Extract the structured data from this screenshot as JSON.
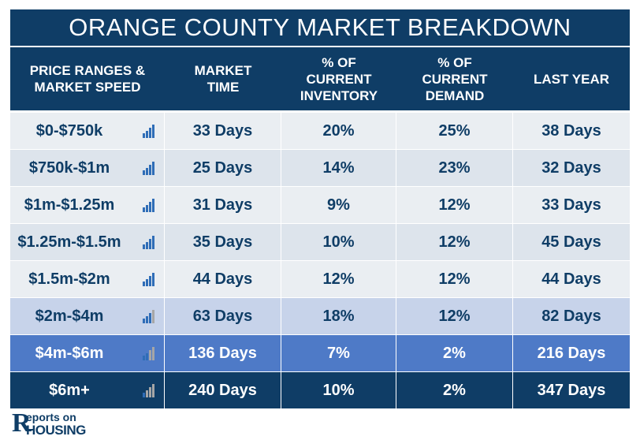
{
  "title": "ORANGE COUNTY MARKET BREAKDOWN",
  "headers": {
    "price": "PRICE RANGES &\nMARKET SPEED",
    "market_time": "MARKET\nTIME",
    "inventory": "% OF\nCURRENT\nINVENTORY",
    "demand": "% OF\nCURRENT\nDEMAND",
    "last_year": "LAST YEAR"
  },
  "rows": [
    {
      "range": "$0-$750k",
      "market_time": "33 Days",
      "inventory": "20%",
      "demand": "25%",
      "last_year": "38 Days",
      "speed_level": 4
    },
    {
      "range": "$750k-$1m",
      "market_time": "25 Days",
      "inventory": "14%",
      "demand": "23%",
      "last_year": "32 Days",
      "speed_level": 4
    },
    {
      "range": "$1m-$1.25m",
      "market_time": "31 Days",
      "inventory": "9%",
      "demand": "12%",
      "last_year": "33 Days",
      "speed_level": 4
    },
    {
      "range": "$1.25m-$1.5m",
      "market_time": "35 Days",
      "inventory": "10%",
      "demand": "12%",
      "last_year": "45 Days",
      "speed_level": 4
    },
    {
      "range": "$1.5m-$2m",
      "market_time": "44 Days",
      "inventory": "12%",
      "demand": "12%",
      "last_year": "44 Days",
      "speed_level": 4
    },
    {
      "range": "$2m-$4m",
      "market_time": "63 Days",
      "inventory": "18%",
      "demand": "12%",
      "last_year": "82 Days",
      "speed_level": 3
    },
    {
      "range": "$4m-$6m",
      "market_time": "136 Days",
      "inventory": "7%",
      "demand": "2%",
      "last_year": "216 Days",
      "speed_level": 2
    },
    {
      "range": "$6m+",
      "market_time": "240 Days",
      "inventory": "10%",
      "demand": "2%",
      "last_year": "347 Days",
      "speed_level": 1
    }
  ],
  "colors": {
    "header_bg": "#0f3d66",
    "row_light": "#eaeef2",
    "row_light_alt": "#dde4ec",
    "row_mid": "#c7d3ea",
    "row_blue": "#4e7ac7",
    "row_dark": "#0f3d66",
    "text_dark": "#0f3d66",
    "bar_on": "#2f6db7",
    "bar_off": "#a6a6a6"
  },
  "logo": {
    "letter": "R",
    "line1": "eports on",
    "line2": "HOUSING"
  }
}
